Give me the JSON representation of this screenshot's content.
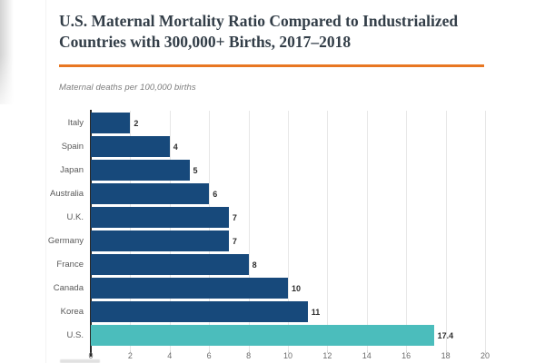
{
  "page": {
    "title": "U.S. Maternal Mortality Ratio Compared to Industrialized Countries with 300,000+ Births, 2017–2018",
    "subtitle": "Maternal deaths per 100,000 births",
    "accent_color": "#E87722"
  },
  "chart_data": {
    "type": "bar",
    "orientation": "horizontal",
    "title": "U.S. Maternal Mortality Ratio Compared to Industrialized Countries with 300,000+ Births, 2017–2018",
    "unit_label": "Maternal deaths per 100,000 births",
    "categories": [
      "Italy",
      "Spain",
      "Japan",
      "Australia",
      "U.K.",
      "Germany",
      "France",
      "Canada",
      "Korea",
      "U.S."
    ],
    "values": [
      2,
      4,
      5,
      6,
      7,
      7,
      8,
      10,
      11,
      17.4
    ],
    "value_labels": [
      "2",
      "4",
      "5",
      "6",
      "7",
      "7",
      "8",
      "10",
      "11",
      "17.4"
    ],
    "xlim": [
      0,
      20
    ],
    "xticks": [
      0,
      2,
      4,
      6,
      8,
      10,
      12,
      14,
      16,
      18,
      20
    ],
    "grid": true,
    "legend": "none",
    "bar_color": "#17497B",
    "highlight_index": 9,
    "highlight_color": "#4BBDBC",
    "axis_line_color": "#2A2A2A"
  }
}
